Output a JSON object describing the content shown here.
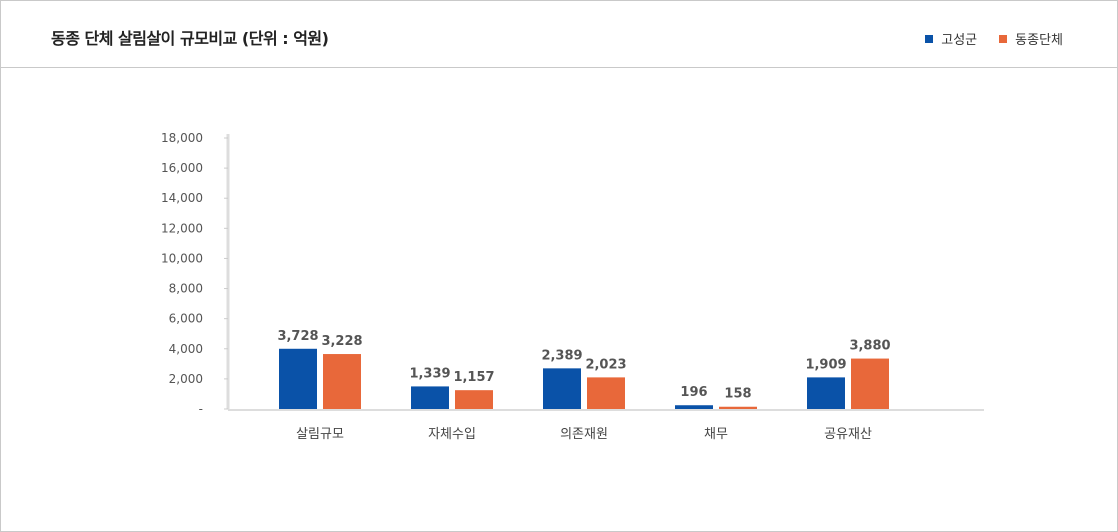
{
  "header": {
    "title": "동종 단체 살림살이 규모비교 (단위 : 억원)"
  },
  "colors": {
    "series_1": "#0a52a8",
    "series_2": "#e8683a",
    "axis": "#dddddd"
  },
  "chart_data": {
    "type": "bar",
    "title": "동종 단체 살림살이 규모비교 (단위 : 억원)",
    "categories": [
      "살림규모",
      "자체수입",
      "의존재원",
      "채무",
      "공유재산"
    ],
    "series": [
      {
        "name": "고성군",
        "values": [
          3728,
          1339,
          2389,
          196,
          1909
        ],
        "labels": [
          "3,728",
          "1,339",
          "2,389",
          "196",
          "1,909"
        ]
      },
      {
        "name": "동종단체",
        "values": [
          3228,
          1157,
          2023,
          158,
          3880
        ],
        "labels": [
          "3,228",
          "1,157",
          "2,023",
          "158",
          "3,880"
        ]
      }
    ],
    "bar_heights_as_drawn": {
      "고성군": [
        4000,
        1500,
        2700,
        250,
        2100
      ],
      "동종단체": [
        3650,
        1250,
        2100,
        150,
        3350
      ]
    },
    "yticks": [
      "-",
      "2,000",
      "4,000",
      "6,000",
      "8,000",
      "10,000",
      "12,000",
      "14,000",
      "16,000",
      "18,000"
    ],
    "ylim": [
      0,
      18000
    ],
    "xlabel": "",
    "ylabel": "",
    "legend_position": "top-right"
  }
}
